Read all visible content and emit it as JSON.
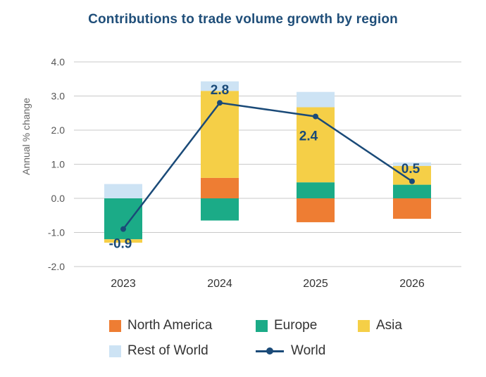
{
  "chart_data": {
    "type": "bar",
    "title": "Contributions to trade volume growth by region",
    "ylabel": "Annual % change",
    "xlabel": "",
    "categories": [
      "2023",
      "2024",
      "2025",
      "2026"
    ],
    "ylim": [
      -2.0,
      4.0
    ],
    "yticks": [
      "4.0",
      "3.0",
      "2.0",
      "1.0",
      "0.0",
      "-1.0",
      "-2.0"
    ],
    "ytick_values": [
      4,
      3,
      2,
      1,
      0,
      -1,
      -2
    ],
    "grid": true,
    "legend_position": "bottom",
    "stacked": true,
    "series": [
      {
        "name": "North America",
        "color": "#ee7d33",
        "values": [
          0.0,
          0.6,
          -0.7,
          -0.6
        ]
      },
      {
        "name": "Europe",
        "color": "#1bab87",
        "values": [
          -1.2,
          -0.65,
          0.47,
          0.4
        ]
      },
      {
        "name": "Asia",
        "color": "#f5cf47",
        "values": [
          -0.1,
          2.55,
          2.2,
          0.55
        ]
      },
      {
        "name": "Rest of World",
        "color": "#cde3f4",
        "values": [
          0.42,
          0.28,
          0.45,
          0.1
        ]
      }
    ],
    "line_series": {
      "name": "World",
      "color": "#1a4a78",
      "values": [
        -0.9,
        2.8,
        2.4,
        0.5
      ],
      "labels": [
        "-0.9",
        "2.8",
        "2.4",
        "0.5"
      ]
    }
  }
}
